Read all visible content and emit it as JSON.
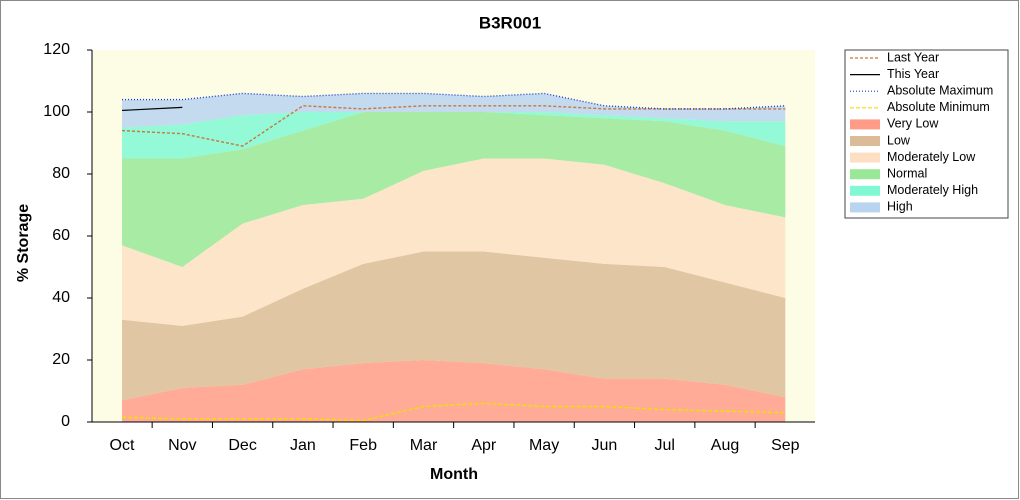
{
  "chart_data": {
    "type": "area",
    "title": "B3R001",
    "x_label": "Month",
    "y_label": "% Storage",
    "categories": [
      "Oct",
      "Nov",
      "Dec",
      "Jan",
      "Feb",
      "Mar",
      "Apr",
      "May",
      "Jun",
      "Jul",
      "Aug",
      "Sep"
    ],
    "ylim": [
      0,
      120
    ],
    "yticks": [
      0,
      20,
      40,
      60,
      80,
      100,
      120
    ],
    "legend": "right",
    "series": [
      {
        "name": "Last Year",
        "type": "line",
        "color": "#c8783c",
        "dash": "3,2",
        "values": [
          94,
          93,
          89,
          102,
          101,
          102,
          102,
          102,
          101,
          101,
          101,
          101
        ]
      },
      {
        "name": "This Year",
        "type": "line",
        "color": "#000000",
        "dash": "none",
        "values": [
          100.5,
          101.5,
          null,
          null,
          null,
          null,
          null,
          null,
          null,
          null,
          null,
          null
        ]
      },
      {
        "name": "Absolute Maximum",
        "type": "line",
        "color": "#2040c8",
        "dash": "1,2",
        "values": [
          104,
          104,
          106,
          105,
          106,
          106,
          105,
          106,
          102,
          101,
          101,
          102
        ]
      },
      {
        "name": "Absolute Minimum",
        "type": "line",
        "color": "#f0e000",
        "dash": "4,2",
        "values": [
          1.5,
          1,
          1,
          1,
          0.5,
          5,
          6,
          5,
          5,
          4,
          3.5,
          3
        ]
      },
      {
        "name": "Very Low",
        "type": "area",
        "color": "#ff9c88",
        "values": [
          7,
          11,
          12,
          17,
          19,
          20,
          19,
          17,
          14,
          14,
          12,
          8
        ]
      },
      {
        "name": "Low",
        "type": "area",
        "color": "#dcbc98",
        "values": [
          33,
          31,
          34,
          43,
          51,
          55,
          55,
          53,
          51,
          50,
          45,
          40
        ]
      },
      {
        "name": "Moderately Low",
        "type": "area",
        "color": "#fde0c4",
        "values": [
          57,
          50,
          64,
          70,
          72,
          81,
          85,
          85,
          83,
          77,
          70,
          66
        ]
      },
      {
        "name": "Normal",
        "type": "area",
        "color": "#98e898",
        "values": [
          85,
          85,
          88,
          94,
          100,
          100,
          100,
          99,
          98,
          97,
          94,
          89
        ]
      },
      {
        "name": "Moderately High",
        "type": "area",
        "color": "#80f8d4",
        "values": [
          95,
          96,
          99,
          100,
          100,
          100,
          100,
          100,
          99,
          98,
          97,
          97
        ]
      },
      {
        "name": "High",
        "type": "area",
        "color": "#b8d4f0",
        "values": [
          104,
          104,
          106,
          105,
          106,
          106,
          105,
          106,
          102,
          101,
          101,
          102
        ]
      }
    ]
  }
}
